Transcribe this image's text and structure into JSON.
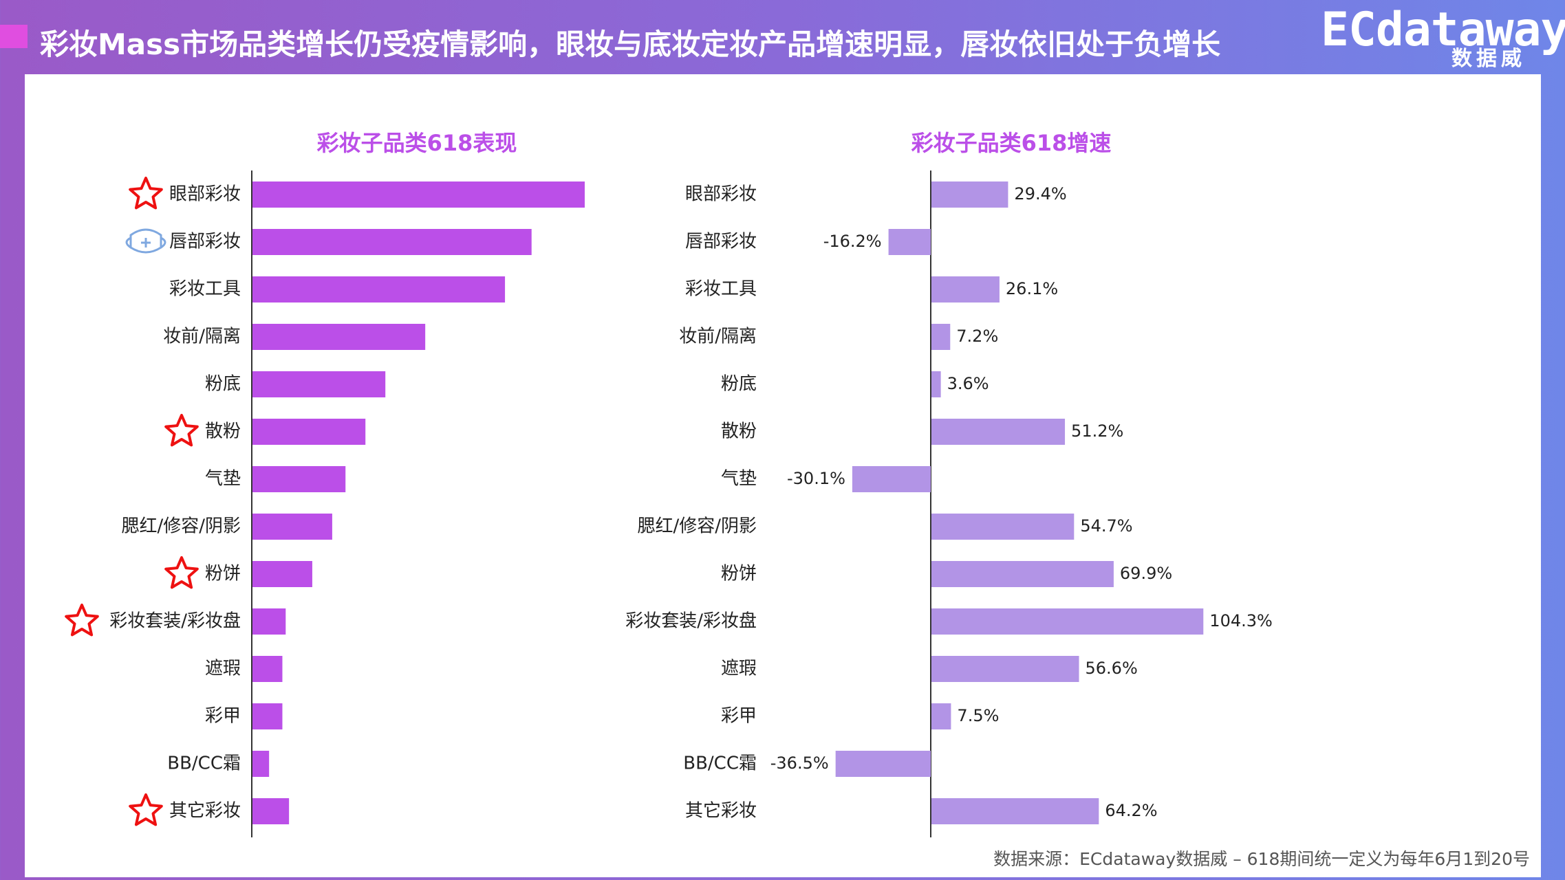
{
  "header": {
    "title": "彩妆Mass市场品类增长仍受疫情影响，眼妆与底妆定妆产品增速明显，唇妆依旧处于负增长",
    "logo_main": "ECdataway",
    "logo_sub": "数据威",
    "accent_color": "#e04ee0"
  },
  "footnote": "数据来源：ECdataway数据威 – 618期间统一定义为每年6月1到20号",
  "colors": {
    "bar_left": "#bb4fe8",
    "bar_right": "#b294e6",
    "star": "#ee1111",
    "mask": "#7fa8e0",
    "chart_title": "#bb4fe8"
  },
  "chart_data": [
    {
      "type": "bar",
      "orientation": "horizontal",
      "title": "彩妆子品类618表现",
      "categories": [
        "眼部彩妆",
        "唇部彩妆",
        "彩妆工具",
        "妆前/隔离",
        "粉底",
        "散粉",
        "气垫",
        "腮红/修容/阴影",
        "粉饼",
        "彩妆套装/彩妆盘",
        "遮瑕",
        "彩甲",
        "BB/CC霜",
        "其它彩妆"
      ],
      "values": [
        100,
        84,
        76,
        52,
        40,
        34,
        28,
        24,
        18,
        10,
        9,
        9,
        5,
        11
      ],
      "icons": [
        "star-icon",
        "mask-icon",
        "",
        "",
        "",
        "star-icon",
        "",
        "",
        "star-icon",
        "star-icon",
        "",
        "",
        "",
        "star-icon"
      ],
      "xlim": [
        0,
        100
      ]
    },
    {
      "type": "bar",
      "orientation": "horizontal",
      "title": "彩妆子品类618增速",
      "categories": [
        "眼部彩妆",
        "唇部彩妆",
        "彩妆工具",
        "妆前/隔离",
        "粉底",
        "散粉",
        "气垫",
        "腮红/修容/阴影",
        "粉饼",
        "彩妆套装/彩妆盘",
        "遮瑕",
        "彩甲",
        "BB/CC霜",
        "其它彩妆"
      ],
      "values": [
        29.4,
        -16.2,
        26.1,
        7.2,
        3.6,
        51.2,
        -30.1,
        54.7,
        69.9,
        104.3,
        56.6,
        7.5,
        -36.5,
        64.2
      ],
      "labels": [
        "29.4%",
        "-16.2%",
        "26.1%",
        "7.2%",
        "3.6%",
        "51.2%",
        "-30.1%",
        "54.7%",
        "69.9%",
        "104.3%",
        "56.6%",
        "7.5%",
        "-36.5%",
        "64.2%"
      ],
      "xlim": [
        -40,
        110
      ]
    }
  ]
}
